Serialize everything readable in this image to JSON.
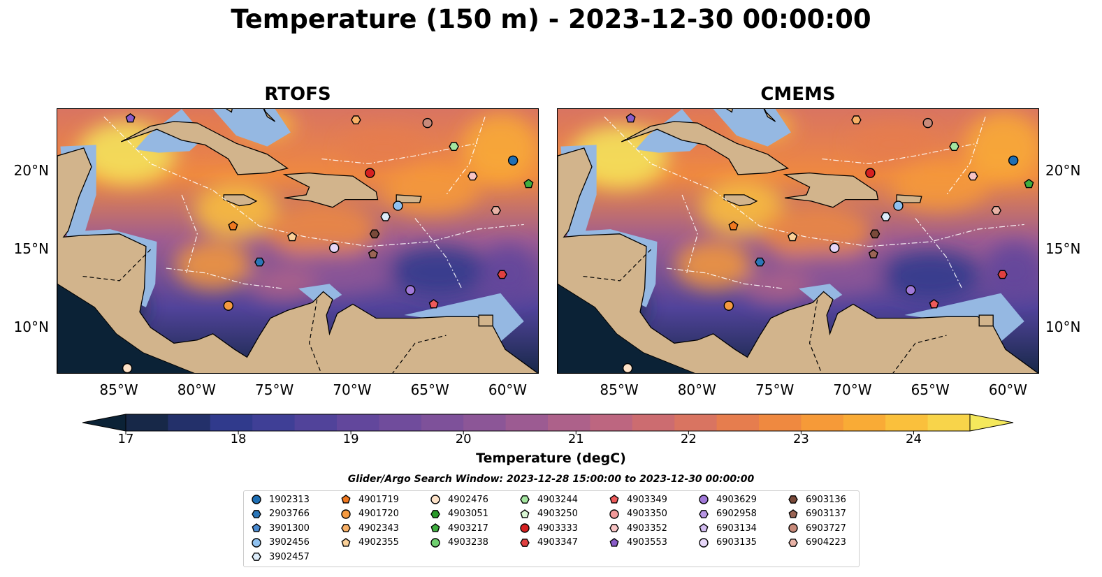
{
  "title": "Temperature (150 m) - 2023-12-30 00:00:00",
  "panels": [
    {
      "title": "RTOFS"
    },
    {
      "title": "CMEMS"
    }
  ],
  "lat_labels": [
    "20°N",
    "15°N",
    "10°N"
  ],
  "lon_labels": [
    "85°W",
    "80°W",
    "75°W",
    "70°W",
    "65°W",
    "60°W"
  ],
  "chart_data": {
    "type": "heatmap",
    "variable": "Temperature (150 m)",
    "datetime": "2023-12-30 00:00:00",
    "lon_range": [
      -89,
      -58
    ],
    "lat_range": [
      7,
      24
    ],
    "lon_ticks": [
      -85,
      -80,
      -75,
      -70,
      -65,
      -60
    ],
    "lat_ticks": [
      20,
      15,
      10
    ],
    "colorbar": {
      "label": "Temperature (degC)",
      "min": 16.5,
      "max": 24.75,
      "ticks": [
        17,
        18,
        19,
        20,
        21,
        22,
        23,
        24
      ],
      "extend": "both",
      "colors": [
        "#0b2236",
        "#172848",
        "#23306a",
        "#303a8c",
        "#3f3f96",
        "#51439a",
        "#62479c",
        "#704c9c",
        "#7e519a",
        "#8c5697",
        "#9c5b92",
        "#ad618a",
        "#bd6680",
        "#cc6c70",
        "#d97461",
        "#e67d4e",
        "#ef8940",
        "#f69a38",
        "#f9ab36",
        "#fac03c",
        "#f8d44a",
        "#f4e85c"
      ]
    },
    "maps": [
      {
        "name": "RTOFS"
      },
      {
        "name": "CMEMS"
      }
    ],
    "search_window": "Glider/Argo Search Window: 2023-12-28 15:00:00 to 2023-12-30 00:00:00",
    "floats": [
      {
        "id": "1902313",
        "marker": "circle",
        "color": "#1f6fb4",
        "lon": -59.7,
        "lat": 20.7
      },
      {
        "id": "2903766",
        "marker": "hexagon",
        "color": "#2b76b8",
        "lon": -76.0,
        "lat": 14.2
      },
      {
        "id": "3901300",
        "marker": "pentagon",
        "color": "#4a8ad0",
        "lon": null,
        "lat": null
      },
      {
        "id": "3902456",
        "marker": "circle",
        "color": "#8fc1f0",
        "lon": -67.1,
        "lat": 17.8
      },
      {
        "id": "3902457",
        "marker": "hexagon",
        "color": "#dcecfa",
        "lon": -67.9,
        "lat": 17.1
      },
      {
        "id": "4901719",
        "marker": "pentagon",
        "color": "#f07820",
        "lon": -77.7,
        "lat": 16.5
      },
      {
        "id": "4901720",
        "marker": "circle",
        "color": "#f59a40",
        "lon": -78.0,
        "lat": 11.4
      },
      {
        "id": "4902343",
        "marker": "hexagon",
        "color": "#f8b066",
        "lon": -69.8,
        "lat": 23.3
      },
      {
        "id": "4902355",
        "marker": "pentagon",
        "color": "#fad098",
        "lon": -73.9,
        "lat": 15.8
      },
      {
        "id": "4902476",
        "marker": "circle",
        "color": "#fde2c8",
        "lon": -84.5,
        "lat": 7.4
      },
      {
        "id": "4903051",
        "marker": "hexagon",
        "color": "#2a9a2a",
        "lon": null,
        "lat": null
      },
      {
        "id": "4903217",
        "marker": "pentagon",
        "color": "#3fae3f",
        "lon": -58.7,
        "lat": 19.2
      },
      {
        "id": "4903238",
        "marker": "circle",
        "color": "#6fcf6f",
        "lon": null,
        "lat": null
      },
      {
        "id": "4903244",
        "marker": "hexagon",
        "color": "#a4e6a0",
        "lon": -63.5,
        "lat": 21.6
      },
      {
        "id": "4903250",
        "marker": "pentagon",
        "color": "#d9f7d4",
        "lon": null,
        "lat": null
      },
      {
        "id": "4903333",
        "marker": "circle",
        "color": "#d62020",
        "lon": -68.9,
        "lat": 19.9
      },
      {
        "id": "4903347",
        "marker": "hexagon",
        "color": "#e04040",
        "lon": -60.4,
        "lat": 13.4
      },
      {
        "id": "4903349",
        "marker": "pentagon",
        "color": "#ee5a5a",
        "lon": -64.8,
        "lat": 11.5
      },
      {
        "id": "4903350",
        "marker": "circle",
        "color": "#f29a9a",
        "lon": null,
        "lat": null
      },
      {
        "id": "4903352",
        "marker": "hexagon",
        "color": "#f8c4c4",
        "lon": -62.3,
        "lat": 19.7
      },
      {
        "id": "4903553",
        "marker": "pentagon",
        "color": "#8a5cc8",
        "lon": -84.3,
        "lat": 23.4
      },
      {
        "id": "4903629",
        "marker": "circle",
        "color": "#a078d8",
        "lon": -66.3,
        "lat": 12.4
      },
      {
        "id": "6902958",
        "marker": "hexagon",
        "color": "#b896e4",
        "lon": null,
        "lat": null
      },
      {
        "id": "6903134",
        "marker": "pentagon",
        "color": "#d2bcf0",
        "lon": null,
        "lat": null
      },
      {
        "id": "6903135",
        "marker": "circle",
        "color": "#e6d6f8",
        "lon": -71.2,
        "lat": 15.1
      },
      {
        "id": "6903136",
        "marker": "hexagon",
        "color": "#7a4a3a",
        "lon": -68.6,
        "lat": 16.0
      },
      {
        "id": "6903137",
        "marker": "pentagon",
        "color": "#9a6454",
        "lon": -68.7,
        "lat": 14.7
      },
      {
        "id": "6903727",
        "marker": "circle",
        "color": "#c88a7a",
        "lon": -65.2,
        "lat": 23.1
      },
      {
        "id": "6904223",
        "marker": "hexagon",
        "color": "#e8b2a6",
        "lon": -60.8,
        "lat": 17.5
      }
    ]
  }
}
